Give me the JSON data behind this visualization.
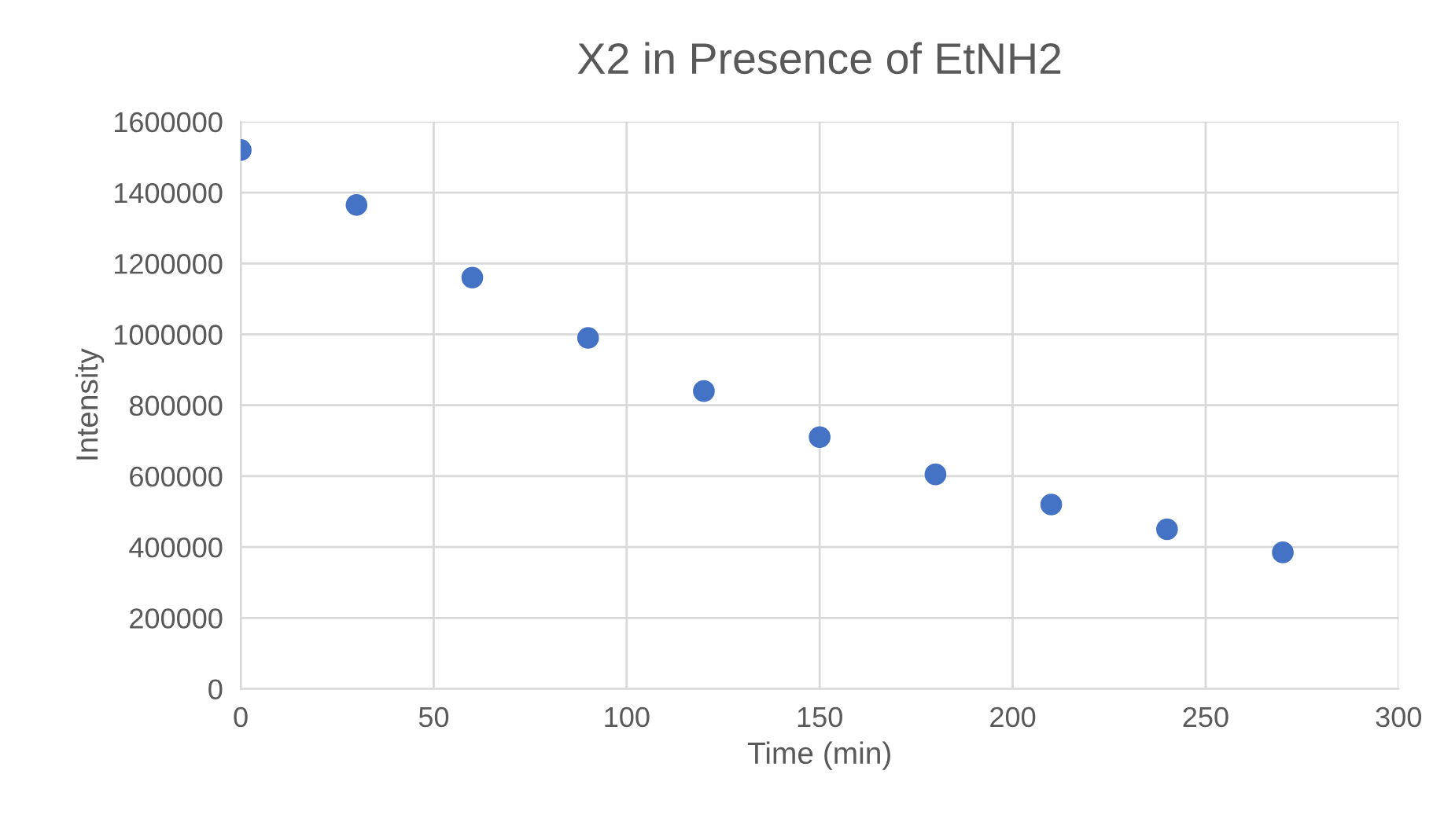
{
  "chart_data": {
    "type": "scatter",
    "title": "X2 in Presence of EtNH2",
    "xlabel": "Time (min)",
    "ylabel": "Intensity",
    "x": [
      0,
      30,
      60,
      90,
      120,
      150,
      180,
      210,
      240,
      270
    ],
    "series": [
      {
        "color": "#4472c4",
        "values": [
          1520000,
          1365000,
          1160000,
          990000,
          840000,
          710000,
          605000,
          520000,
          450000,
          385000
        ]
      }
    ],
    "xlim": [
      0,
      300
    ],
    "xticks": [
      0,
      50,
      100,
      150,
      200,
      250,
      300
    ],
    "ylim": [
      0,
      1600000
    ],
    "yticks": [
      0,
      200000,
      400000,
      600000,
      800000,
      1000000,
      1200000,
      1400000,
      1600000
    ],
    "grid": true,
    "marker": "circle",
    "legend": false
  }
}
